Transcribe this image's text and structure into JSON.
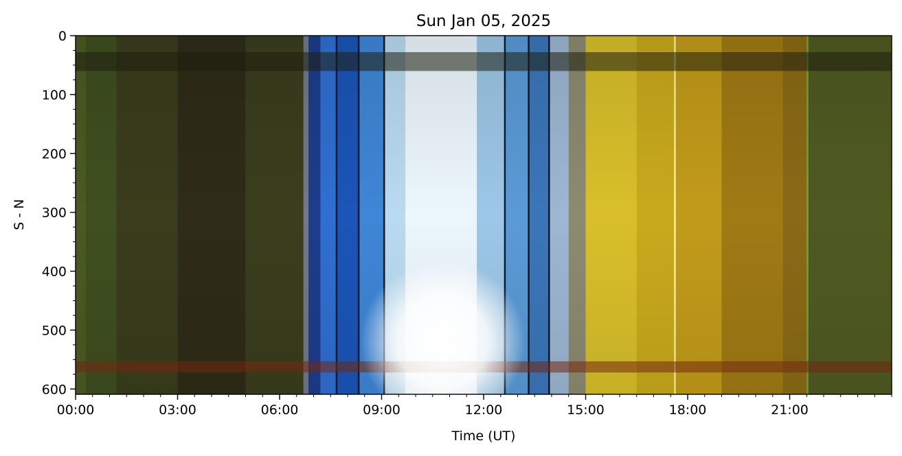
{
  "chart_data": {
    "type": "heatmap",
    "title": "Sun Jan 05, 2025",
    "xlabel": "Time (UT)",
    "ylabel": "S - N",
    "x_unit": "hours UT",
    "xlim": [
      0,
      24
    ],
    "ylim": [
      609,
      0
    ],
    "x_ticks": [
      {
        "value": 0,
        "label": "00:00"
      },
      {
        "value": 3,
        "label": "03:00"
      },
      {
        "value": 6,
        "label": "06:00"
      },
      {
        "value": 9,
        "label": "09:00"
      },
      {
        "value": 12,
        "label": "12:00"
      },
      {
        "value": 15,
        "label": "15:00"
      },
      {
        "value": 18,
        "label": "18:00"
      },
      {
        "value": 21,
        "label": "21:00"
      }
    ],
    "x_minor_step": 0.5,
    "y_ticks": [
      {
        "value": 0,
        "label": "0"
      },
      {
        "value": 100,
        "label": "100"
      },
      {
        "value": 200,
        "label": "200"
      },
      {
        "value": 300,
        "label": "300"
      },
      {
        "value": 400,
        "label": "400"
      },
      {
        "value": 500,
        "label": "500"
      },
      {
        "value": 600,
        "label": "600"
      }
    ],
    "y_minor_step": 25,
    "grid": false,
    "legend": "none",
    "time_bands": [
      {
        "start": 0.0,
        "end": 0.3,
        "color": "#4a5a22"
      },
      {
        "start": 0.3,
        "end": 1.2,
        "color": "#3f4f1f"
      },
      {
        "start": 1.2,
        "end": 3.0,
        "color": "#3a3d1c"
      },
      {
        "start": 3.0,
        "end": 5.0,
        "color": "#2e2c18"
      },
      {
        "start": 5.0,
        "end": 6.7,
        "color": "#3a3e1d"
      },
      {
        "start": 6.7,
        "end": 6.85,
        "color": "#6e7a8a"
      },
      {
        "start": 6.85,
        "end": 7.2,
        "color": "#1d3c8c"
      },
      {
        "start": 7.2,
        "end": 7.65,
        "color": "#2f6fd0"
      },
      {
        "start": 7.65,
        "end": 7.7,
        "color": "#0a1a40"
      },
      {
        "start": 7.7,
        "end": 8.3,
        "color": "#1b55b8"
      },
      {
        "start": 8.3,
        "end": 8.35,
        "color": "#081630"
      },
      {
        "start": 8.35,
        "end": 9.05,
        "color": "#3f86d6"
      },
      {
        "start": 9.05,
        "end": 9.1,
        "color": "#0a1a30"
      },
      {
        "start": 9.1,
        "end": 9.7,
        "color": "#b9daf0"
      },
      {
        "start": 9.7,
        "end": 11.8,
        "color": "#ecf6fd"
      },
      {
        "start": 11.8,
        "end": 12.6,
        "color": "#9cc7e6"
      },
      {
        "start": 12.6,
        "end": 12.65,
        "color": "#0a1a30"
      },
      {
        "start": 12.65,
        "end": 13.3,
        "color": "#5a9ad6"
      },
      {
        "start": 13.3,
        "end": 13.35,
        "color": "#0a1830"
      },
      {
        "start": 13.35,
        "end": 13.9,
        "color": "#3b76b8"
      },
      {
        "start": 13.9,
        "end": 13.95,
        "color": "#0a1830"
      },
      {
        "start": 13.95,
        "end": 14.5,
        "color": "#9db6d2"
      },
      {
        "start": 14.5,
        "end": 15.0,
        "color": "#8c8a70"
      },
      {
        "start": 15.0,
        "end": 16.5,
        "color": "#d8bf2a"
      },
      {
        "start": 16.5,
        "end": 17.6,
        "color": "#c9a91c"
      },
      {
        "start": 17.6,
        "end": 17.65,
        "color": "#f6f2a8"
      },
      {
        "start": 17.65,
        "end": 19.0,
        "color": "#c29b1a"
      },
      {
        "start": 19.0,
        "end": 20.8,
        "color": "#a07a14"
      },
      {
        "start": 20.8,
        "end": 21.5,
        "color": "#8a6a16"
      },
      {
        "start": 21.5,
        "end": 21.55,
        "color": "#80a040"
      },
      {
        "start": 21.55,
        "end": 24.0,
        "color": "#4f5a22"
      }
    ],
    "horizontal_bands": [
      {
        "start": 28,
        "end": 60,
        "color": "#202010",
        "opacity": 0.55
      },
      {
        "start": 553,
        "end": 572,
        "color": "#7a2a10",
        "opacity": 0.55
      }
    ],
    "bright_core": {
      "x": 10.8,
      "y": 520,
      "color": "#ffffff"
    }
  }
}
